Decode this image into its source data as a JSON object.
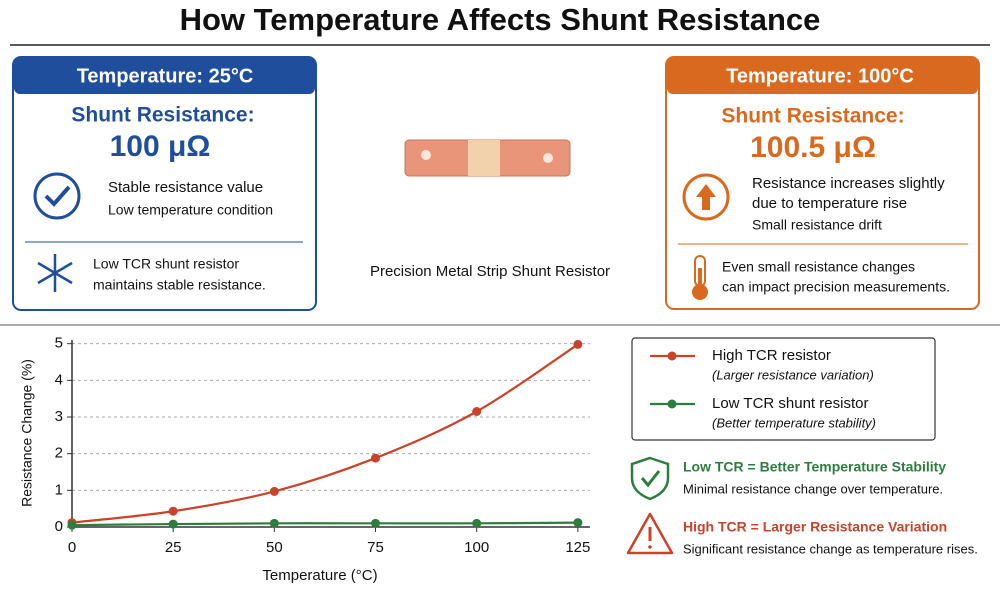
{
  "header": {
    "title": "How Temperature Affects Shunt Resistance"
  },
  "left_panel": {
    "heading": "Temperature: 25°C",
    "label": "Shunt Resistance:",
    "value": "100 μΩ",
    "status": [
      "Stable resistance value",
      "Low temperature condition"
    ],
    "note": [
      "Low TCR shunt resistor",
      "maintains stable resistance."
    ]
  },
  "center": {
    "caption": "Precision Metal Strip Shunt Resistor"
  },
  "right_panel": {
    "heading": "Temperature: 100°C",
    "label": "Shunt Resistance:",
    "value": "100.5 μΩ",
    "status": [
      "Resistance increases slightly",
      "due to temperature rise",
      "Small resistance drift"
    ],
    "note": [
      "Even small resistance changes",
      "can impact precision measurements."
    ]
  },
  "takeaways": [
    {
      "title": "Low TCR = Better Temperature Stability",
      "text": "Minimal resistance change over temperature."
    },
    {
      "title": "High TCR = Larger Resistance Variation",
      "text": "Significant resistance change as temperature rises."
    }
  ],
  "chart_data": {
    "type": "line",
    "xlabel": "Temperature (°C)",
    "ylabel": "Resistance Change (%)",
    "x": [
      0,
      25,
      50,
      75,
      100,
      125
    ],
    "series": [
      {
        "name": "High TCR resistor",
        "description": "(Larger resistance variation)",
        "color": "#c8432a",
        "values": [
          0.12,
          0.43,
          0.97,
          1.88,
          3.15,
          4.98
        ]
      },
      {
        "name": "Low TCR shunt resistor",
        "description": "(Better temperature stability)",
        "color": "#2e7d3e",
        "values": [
          0.05,
          0.08,
          0.1,
          0.1,
          0.1,
          0.12
        ]
      }
    ],
    "xlim": [
      0,
      128
    ],
    "ylim": [
      0,
      5.1
    ],
    "xticks": [
      0,
      25,
      50,
      75,
      100,
      125
    ],
    "yticks": [
      0,
      1,
      2,
      3,
      4,
      5
    ],
    "grid": true
  }
}
